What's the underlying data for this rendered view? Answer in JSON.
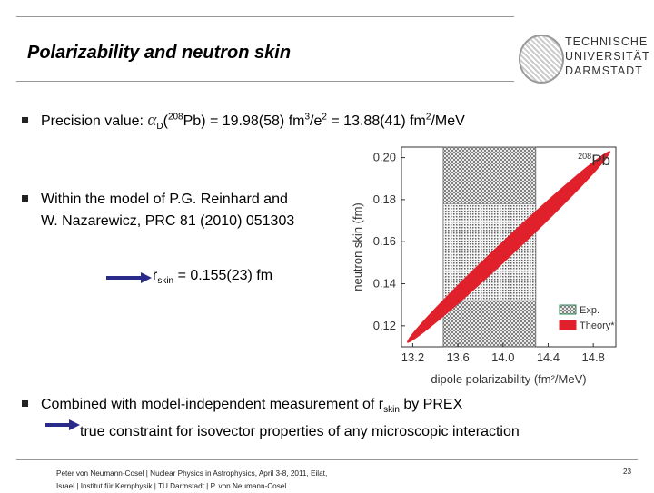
{
  "slide": {
    "title": "Polarizability and neutron skin",
    "logo_lines": [
      "TECHNISCHE",
      "UNIVERSITÄT",
      "DARMSTADT"
    ],
    "bullet1": {
      "prefix": "Precision value: ",
      "alpha": "α",
      "alpha_sub": "D",
      "open": "(",
      "sup208": "208",
      "mid": "Pb) = 19.98(58) fm",
      "sup3": "3",
      "slash": "/e",
      "sup2a": "2",
      "eq2": " = 13.88(41) fm",
      "sup2b": "2",
      "unit_end": "/MeV"
    },
    "bullet2": {
      "line1": "Within the model of P.G. Reinhard and",
      "line2": "W. Nazarewicz, PRC 81 (2010) 051303"
    },
    "rskin": {
      "r": "r",
      "sub": "skin",
      "value": " = 0.155(23) fm"
    },
    "bullet3": {
      "line1_a": "Combined with model-independent measurement of r",
      "line1_sub": "skin",
      "line1_b": " by PREX",
      "line2": "true constraint for isovector properties of any microscopic interaction"
    },
    "footer": {
      "line1": "Peter von Neumann-Cosel | Nuclear Physics in Astrophysics, April 3-8, 2011, Eilat,",
      "line2": "Israel | Institut für Kernphysik | TU Darmstadt | P. von Neumann-Cosel",
      "page": "23"
    }
  },
  "chart_data": {
    "type": "area",
    "xlabel": "dipole polarizability (fm²/MeV)",
    "ylabel": "neutron skin (fm)",
    "xlim": [
      13.1,
      15.0
    ],
    "ylim": [
      0.11,
      0.205
    ],
    "xticks": [
      "13.2",
      "13.6",
      "14.0",
      "14.4",
      "14.8"
    ],
    "yticks": [
      "0.20",
      "0.18",
      "0.16",
      "0.14",
      "0.12"
    ],
    "label_sup": "208",
    "label": "Pb",
    "legend": [
      {
        "name": "Exp.",
        "color": "#2e8b57"
      },
      {
        "name": "Theory*",
        "color": "#e0202a"
      }
    ],
    "exp_band_x": [
      13.47,
      14.29
    ],
    "rskin_band_y": [
      0.132,
      0.178
    ],
    "theory_line": {
      "x": [
        13.15,
        14.95
      ],
      "y": [
        0.112,
        0.203
      ]
    },
    "colors": {
      "theory": "#e0202a",
      "hatch": "#555555",
      "axis": "#333333"
    }
  }
}
